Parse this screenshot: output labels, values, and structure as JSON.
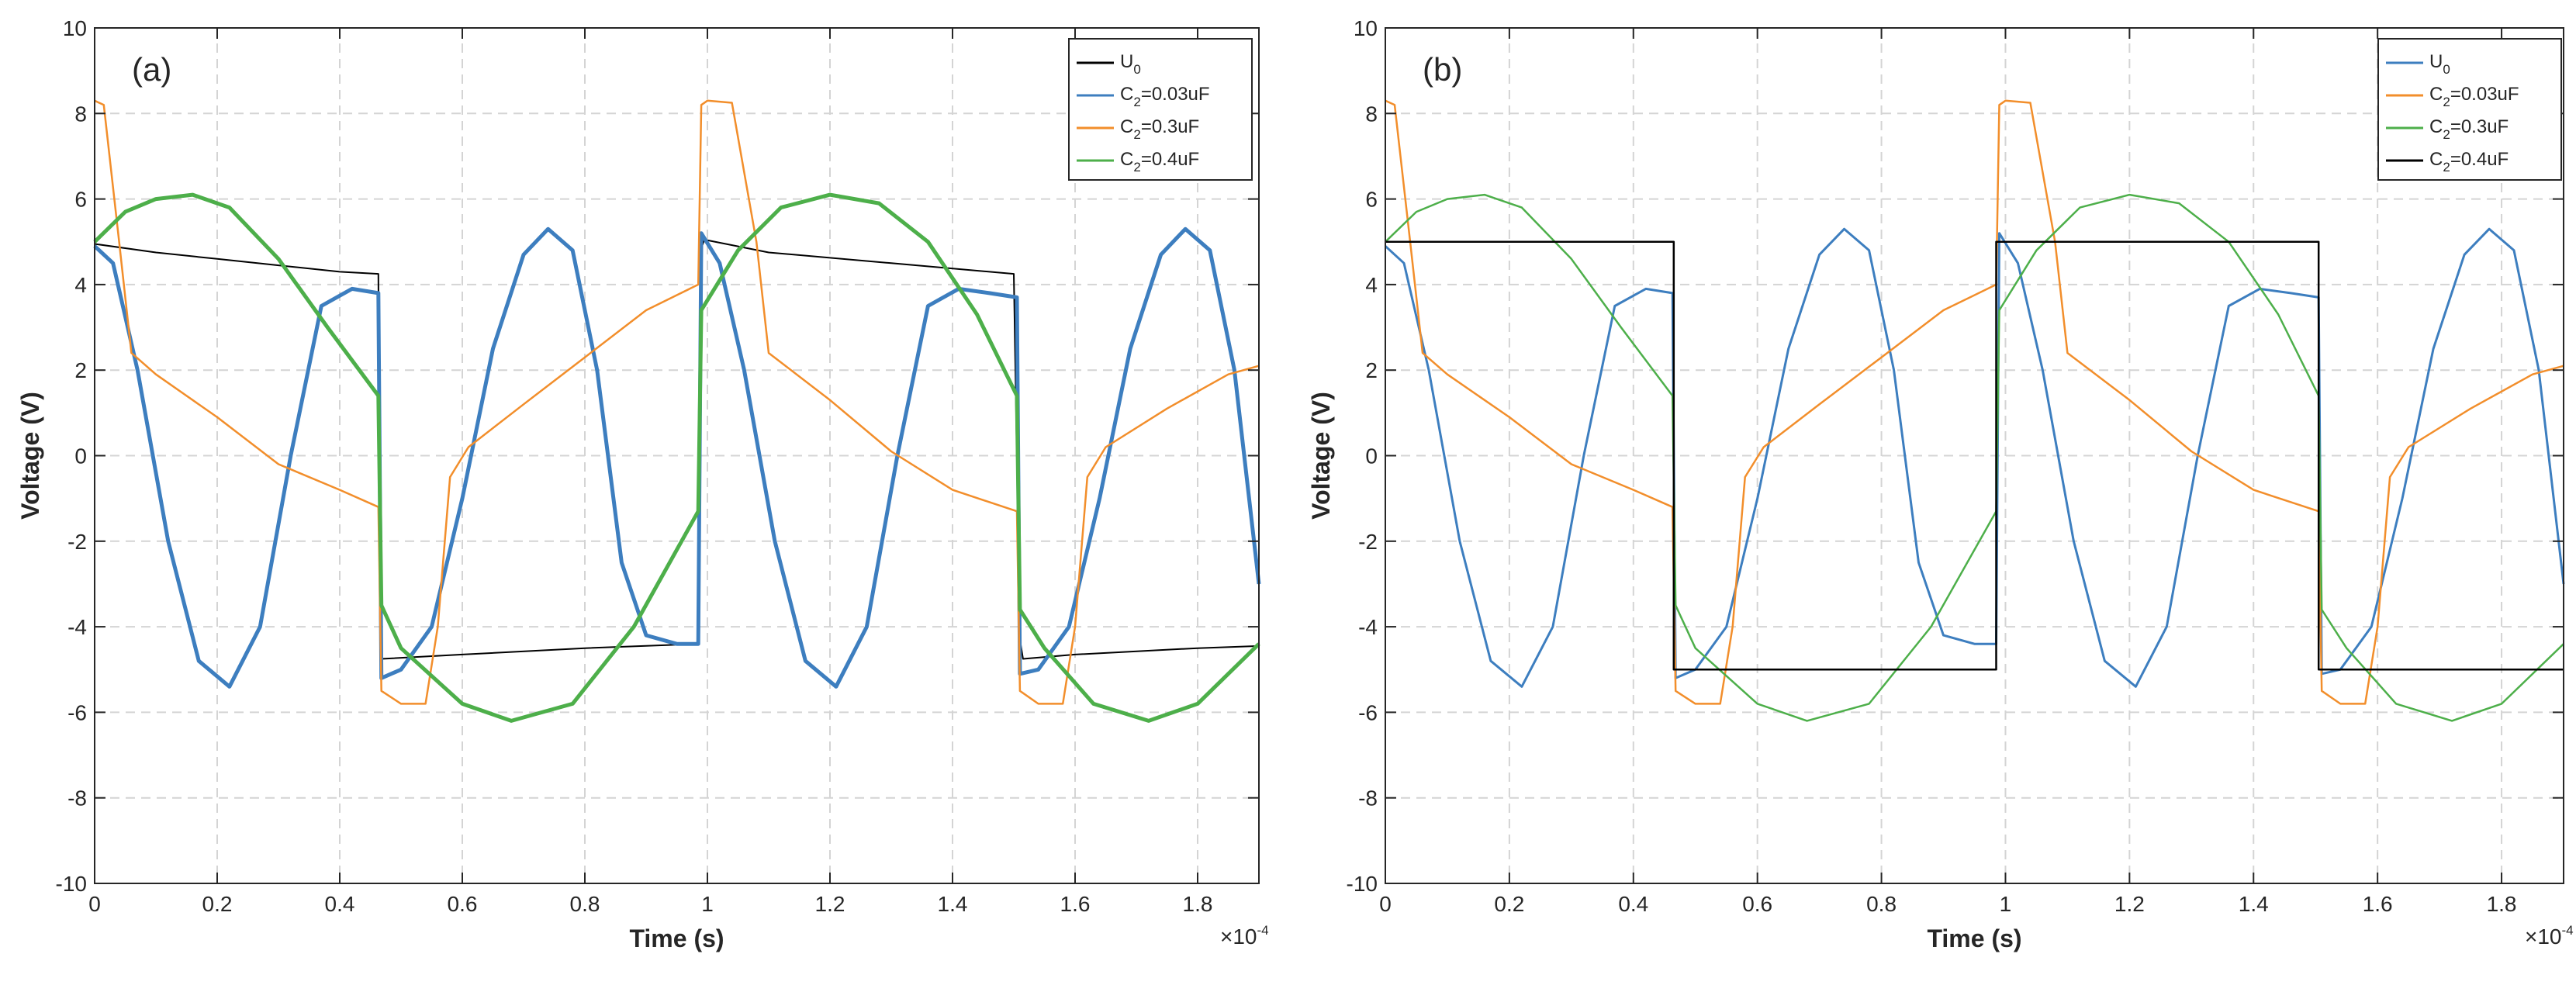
{
  "chart_data": [
    {
      "type": "line",
      "panel_label": "(a)",
      "xlabel": "Time (s)",
      "ylabel": "Voltage (V)",
      "x_multiplier": "×10",
      "x_multiplier_exp": "-4",
      "xlim": [
        0,
        1.9
      ],
      "ylim": [
        -10,
        10
      ],
      "xticks": [
        "0",
        "0.2",
        "0.4",
        "0.6",
        "0.8",
        "1",
        "1.2",
        "1.4",
        "1.6",
        "1.8"
      ],
      "yticks": [
        "-10",
        "-8",
        "-6",
        "-4",
        "-2",
        "0",
        "2",
        "4",
        "6",
        "8",
        "10"
      ],
      "grid": true,
      "legend_position": "top-right",
      "series": [
        {
          "name": "U",
          "sub": "0",
          "tail": "",
          "color": "#000000",
          "width": 2,
          "x": [
            0,
            0.1,
            0.2,
            0.3,
            0.4,
            0.463,
            0.466,
            0.468,
            0.6,
            0.8,
            0.985,
            0.99,
            0.995,
            1.1,
            1.3,
            1.5,
            1.51,
            1.515,
            1.6,
            1.8,
            1.9
          ],
          "y": [
            4.95,
            4.75,
            4.6,
            4.45,
            4.3,
            4.25,
            -4.3,
            -4.75,
            -4.65,
            -4.5,
            -4.4,
            4.85,
            5.05,
            4.75,
            4.5,
            4.25,
            -4.3,
            -4.75,
            -4.65,
            -4.5,
            -4.45
          ]
        },
        {
          "name": "C",
          "sub": "2",
          "tail": "=0.03uF",
          "color": "#3d7ebf",
          "width": 5,
          "x": [
            0,
            0.03,
            0.07,
            0.12,
            0.17,
            0.22,
            0.27,
            0.32,
            0.37,
            0.42,
            0.463,
            0.468,
            0.5,
            0.55,
            0.6,
            0.65,
            0.7,
            0.74,
            0.78,
            0.82,
            0.86,
            0.9,
            0.95,
            0.985,
            0.99,
            1.02,
            1.06,
            1.11,
            1.16,
            1.21,
            1.26,
            1.31,
            1.36,
            1.41,
            1.46,
            1.505,
            1.51,
            1.54,
            1.59,
            1.64,
            1.69,
            1.74,
            1.78,
            1.82,
            1.86,
            1.9
          ],
          "y": [
            4.9,
            4.5,
            2.0,
            -2.0,
            -4.8,
            -5.4,
            -4.0,
            0.0,
            3.5,
            3.9,
            3.8,
            -5.2,
            -5.0,
            -4.0,
            -1.0,
            2.5,
            4.7,
            5.3,
            4.8,
            2.0,
            -2.5,
            -4.2,
            -4.4,
            -4.4,
            5.2,
            4.5,
            2.0,
            -2.0,
            -4.8,
            -5.4,
            -4.0,
            0.0,
            3.5,
            3.9,
            3.8,
            3.7,
            -5.1,
            -5.0,
            -4.0,
            -1.0,
            2.5,
            4.7,
            5.3,
            4.8,
            2.0,
            -3.0
          ]
        },
        {
          "name": "C",
          "sub": "2",
          "tail": "=0.3uF",
          "color": "#f28e2b",
          "width": 2.5,
          "x": [
            0,
            0.015,
            0.04,
            0.06,
            0.1,
            0.2,
            0.3,
            0.4,
            0.463,
            0.468,
            0.5,
            0.54,
            0.56,
            0.58,
            0.61,
            0.7,
            0.8,
            0.9,
            0.985,
            0.99,
            1.0,
            1.04,
            1.08,
            1.1,
            1.2,
            1.3,
            1.4,
            1.505,
            1.51,
            1.54,
            1.58,
            1.6,
            1.62,
            1.65,
            1.75,
            1.85,
            1.9
          ],
          "y": [
            8.3,
            8.2,
            5.0,
            2.4,
            1.9,
            0.9,
            -0.2,
            -0.8,
            -1.2,
            -5.5,
            -5.8,
            -5.8,
            -4.0,
            -0.5,
            0.2,
            1.2,
            2.3,
            3.4,
            4.0,
            8.2,
            8.3,
            8.25,
            5.0,
            2.4,
            1.3,
            0.1,
            -0.8,
            -1.3,
            -5.5,
            -5.8,
            -5.8,
            -4.0,
            -0.5,
            0.2,
            1.1,
            1.9,
            2.1
          ]
        },
        {
          "name": "C",
          "sub": "2",
          "tail": "=0.4uF",
          "color": "#4daf4a",
          "width": 5,
          "x": [
            0,
            0.05,
            0.1,
            0.16,
            0.22,
            0.3,
            0.38,
            0.463,
            0.468,
            0.5,
            0.6,
            0.68,
            0.78,
            0.88,
            0.985,
            0.99,
            1.05,
            1.12,
            1.2,
            1.28,
            1.36,
            1.44,
            1.505,
            1.51,
            1.55,
            1.63,
            1.72,
            1.8,
            1.9
          ],
          "y": [
            5.0,
            5.7,
            6.0,
            6.1,
            5.8,
            4.6,
            3.0,
            1.4,
            -3.5,
            -4.5,
            -5.8,
            -6.2,
            -5.8,
            -4.0,
            -1.3,
            3.4,
            4.8,
            5.8,
            6.1,
            5.9,
            5.0,
            3.3,
            1.4,
            -3.6,
            -4.5,
            -5.8,
            -6.2,
            -5.8,
            -4.4
          ]
        }
      ]
    },
    {
      "type": "line",
      "panel_label": "(b)",
      "xlabel": "Time (s)",
      "ylabel": "Voltage (V)",
      "x_multiplier": "×10",
      "x_multiplier_exp": "-4",
      "xlim": [
        0,
        1.9
      ],
      "ylim": [
        -10,
        10
      ],
      "xticks": [
        "0",
        "0.2",
        "0.4",
        "0.6",
        "0.8",
        "1",
        "1.2",
        "1.4",
        "1.6",
        "1.8"
      ],
      "yticks": [
        "-10",
        "-8",
        "-6",
        "-4",
        "-2",
        "0",
        "2",
        "4",
        "6",
        "8",
        "10"
      ],
      "grid": true,
      "legend_position": "top-right",
      "series": [
        {
          "name": "U",
          "sub": "0",
          "tail": "",
          "color": "#3d7ebf",
          "width": 3,
          "x": [
            0,
            0.03,
            0.07,
            0.12,
            0.17,
            0.22,
            0.27,
            0.32,
            0.37,
            0.42,
            0.463,
            0.468,
            0.5,
            0.55,
            0.6,
            0.65,
            0.7,
            0.74,
            0.78,
            0.82,
            0.86,
            0.9,
            0.95,
            0.985,
            0.99,
            1.02,
            1.06,
            1.11,
            1.16,
            1.21,
            1.26,
            1.31,
            1.36,
            1.41,
            1.46,
            1.505,
            1.51,
            1.54,
            1.59,
            1.64,
            1.69,
            1.74,
            1.78,
            1.82,
            1.86,
            1.9
          ],
          "y": [
            4.9,
            4.5,
            2.0,
            -2.0,
            -4.8,
            -5.4,
            -4.0,
            0.0,
            3.5,
            3.9,
            3.8,
            -5.2,
            -5.0,
            -4.0,
            -1.0,
            2.5,
            4.7,
            5.3,
            4.8,
            2.0,
            -2.5,
            -4.2,
            -4.4,
            -4.4,
            5.2,
            4.5,
            2.0,
            -2.0,
            -4.8,
            -5.4,
            -4.0,
            0.0,
            3.5,
            3.9,
            3.8,
            3.7,
            -5.1,
            -5.0,
            -4.0,
            -1.0,
            2.5,
            4.7,
            5.3,
            4.8,
            2.0,
            -3.0
          ]
        },
        {
          "name": "C",
          "sub": "2",
          "tail": "=0.03uF",
          "color": "#f28e2b",
          "width": 2.5,
          "x": [
            0,
            0.015,
            0.04,
            0.06,
            0.1,
            0.2,
            0.3,
            0.4,
            0.463,
            0.468,
            0.5,
            0.54,
            0.56,
            0.58,
            0.61,
            0.7,
            0.8,
            0.9,
            0.985,
            0.99,
            1.0,
            1.04,
            1.08,
            1.1,
            1.2,
            1.3,
            1.4,
            1.505,
            1.51,
            1.54,
            1.58,
            1.6,
            1.62,
            1.65,
            1.75,
            1.85,
            1.9
          ],
          "y": [
            8.3,
            8.2,
            5.0,
            2.4,
            1.9,
            0.9,
            -0.2,
            -0.8,
            -1.2,
            -5.5,
            -5.8,
            -5.8,
            -4.0,
            -0.5,
            0.2,
            1.2,
            2.3,
            3.4,
            4.0,
            8.2,
            8.3,
            8.25,
            5.0,
            2.4,
            1.3,
            0.1,
            -0.8,
            -1.3,
            -5.5,
            -5.8,
            -5.8,
            -4.0,
            -0.5,
            0.2,
            1.1,
            1.9,
            2.1
          ]
        },
        {
          "name": "C",
          "sub": "2",
          "tail": "=0.3uF",
          "color": "#4daf4a",
          "width": 2.5,
          "x": [
            0,
            0.05,
            0.1,
            0.16,
            0.22,
            0.3,
            0.38,
            0.463,
            0.468,
            0.5,
            0.6,
            0.68,
            0.78,
            0.88,
            0.985,
            0.99,
            1.05,
            1.12,
            1.2,
            1.28,
            1.36,
            1.44,
            1.505,
            1.51,
            1.55,
            1.63,
            1.72,
            1.8,
            1.9
          ],
          "y": [
            5.0,
            5.7,
            6.0,
            6.1,
            5.8,
            4.6,
            3.0,
            1.4,
            -3.5,
            -4.5,
            -5.8,
            -6.2,
            -5.8,
            -4.0,
            -1.3,
            3.4,
            4.8,
            5.8,
            6.1,
            5.9,
            5.0,
            3.3,
            1.4,
            -3.6,
            -4.5,
            -5.8,
            -6.2,
            -5.8,
            -4.4
          ]
        },
        {
          "name": "C",
          "sub": "2",
          "tail": "=0.4uF",
          "color": "#000000",
          "width": 2.5,
          "x": [
            0,
            0.465,
            0.465,
            0.985,
            0.985,
            1.505,
            1.505,
            1.9
          ],
          "y": [
            5,
            5,
            -5,
            -5,
            5,
            5,
            -5,
            -5
          ]
        }
      ]
    }
  ]
}
